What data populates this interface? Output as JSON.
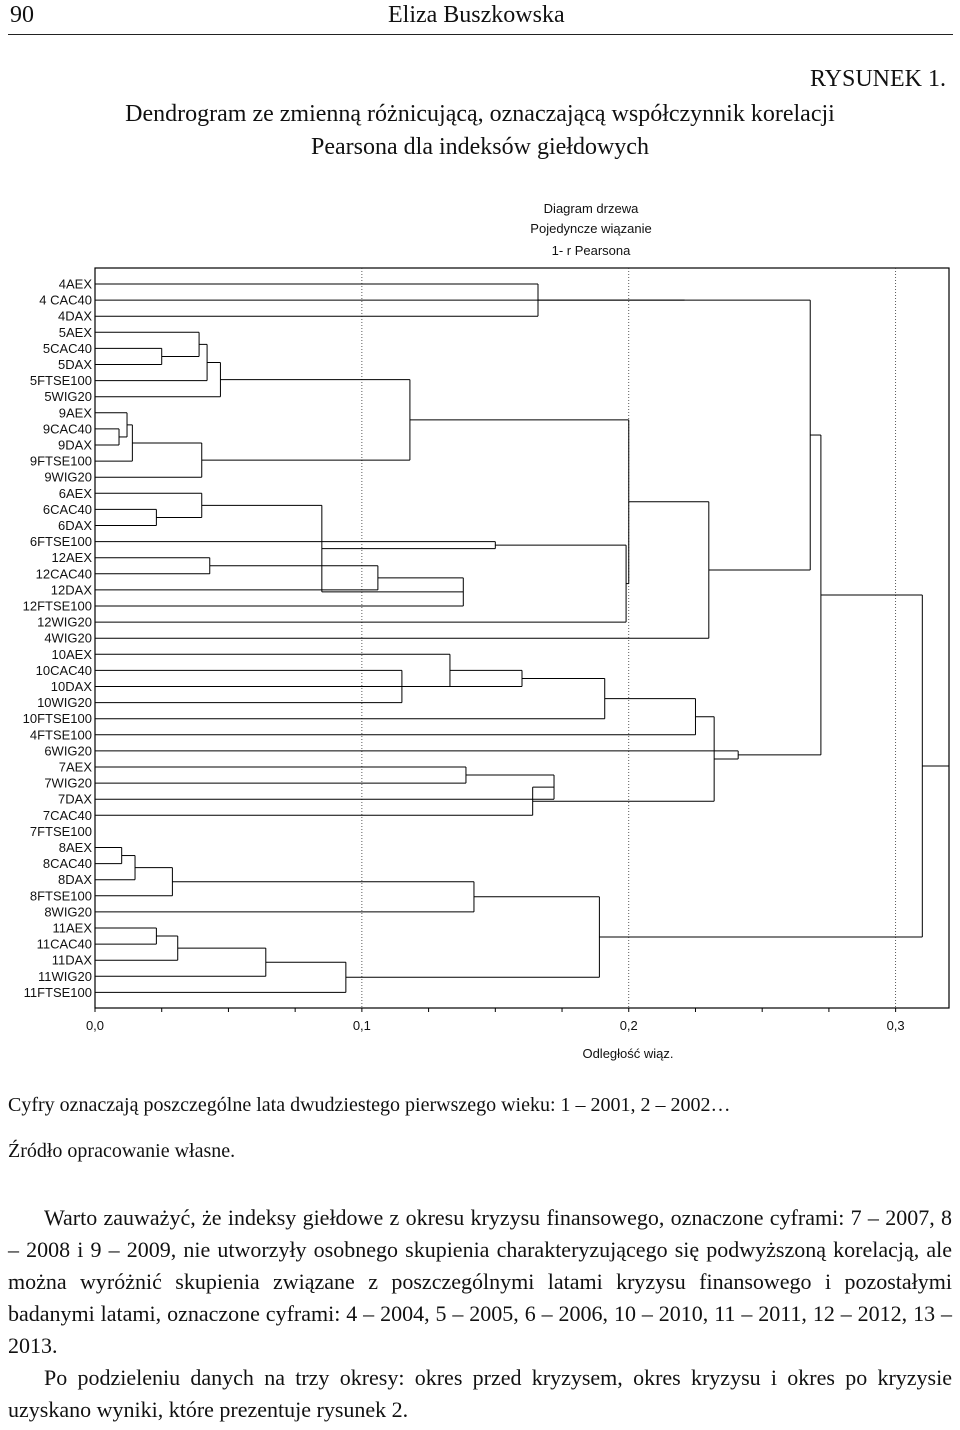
{
  "header": {
    "page_number": "90",
    "author": "Eliza Buszkowska"
  },
  "figure": {
    "label": "RYSUNEK 1.",
    "title_line1": "Dendrogram ze zmienną różnicującą, oznaczającą współczynnik korelacji",
    "title_line2": "Pearsona dla indeksów giełdowych"
  },
  "chart_data": {
    "type": "dendrogram",
    "title": "Diagram drzewa",
    "subtitle1": "Pojedyncze wiązanie",
    "subtitle2": "1- r Pearsona",
    "xlabel": "Odległość wiąz.",
    "x_ticks": [
      "0,0",
      "0,1",
      "0,2",
      "0,3"
    ],
    "xlim": [
      0,
      0.32
    ],
    "leaves": [
      "4AEX",
      "4 CAC40",
      "4DAX",
      "5AEX",
      "5CAC40",
      "5DAX",
      "5FTSE100",
      "5WIG20",
      "9AEX",
      "9CAC40",
      "9DAX",
      "9FTSE100",
      "9WIG20",
      "6AEX",
      "6CAC40",
      "6DAX",
      "6FTSE100",
      "12AEX",
      "12CAC40",
      "12DAX",
      "12FTSE100",
      "12WIG20",
      "4WIG20",
      "10AEX",
      "10CAC40",
      "10DAX",
      "10WIG20",
      "10FTSE100",
      "4FTSE100",
      "6WIG20",
      "7AEX",
      "7WIG20",
      "7DAX",
      "7CAC40",
      "7FTSE100",
      "8AEX",
      "8CAC40",
      "8DAX",
      "8FTSE100",
      "8WIG20",
      "11AEX",
      "11CAC40",
      "11DAX",
      "11WIG20",
      "11FTSE100"
    ]
  },
  "note": "Cyfry oznaczają poszczególne lata dwudziestego pierwszego wieku: 1 – 2001, 2 – 2002…",
  "source": "Źródło opracowanie własne.",
  "body": {
    "p1": "Warto zauważyć, że indeksy giełdowe z okresu kryzysu finansowego, oznaczone cyframi: 7 – 2007, 8 – 2008 i 9 – 2009, nie utworzyły osobnego skupienia charakteryzującego się podwyższoną korelacją, ale można wyróżnić skupienia związane z poszczególnymi latami kryzysu finansowego i pozostałymi badanymi latami, oznaczone cyframi: 4 – 2004, 5 – 2005, 6 – 2006, 10 – 2010, 11 – 2011, 12 – 2012, 13 – 2013.",
    "p2": "Po podzieleniu danych na trzy okresy: okres przed kryzysem, okres kryzysu i okres po kryzysie uzyskano wyniki, które prezentuje rysunek 2."
  }
}
